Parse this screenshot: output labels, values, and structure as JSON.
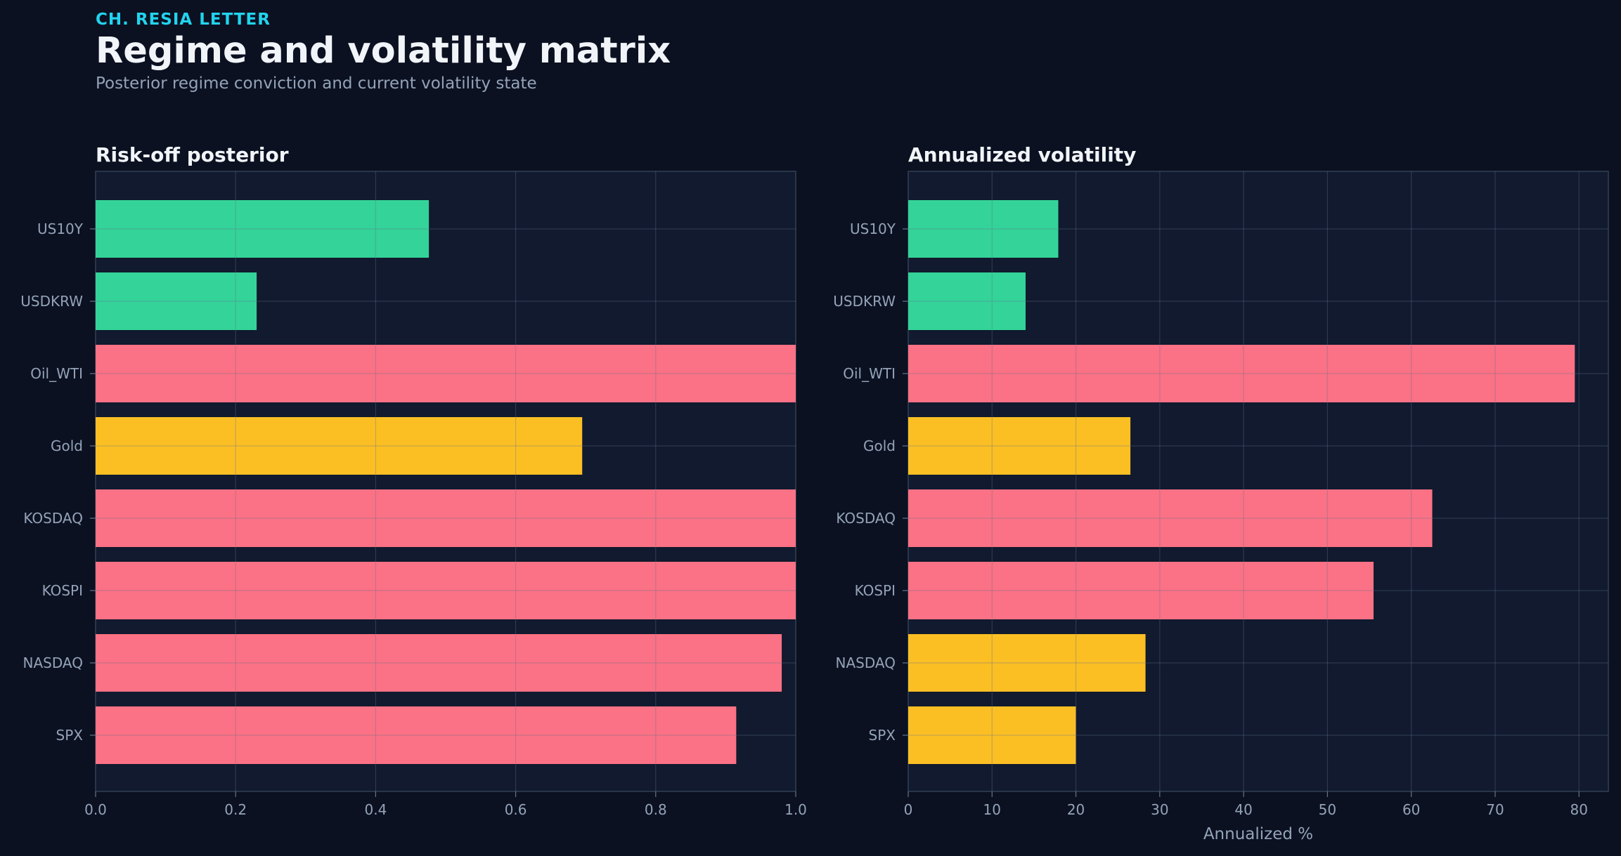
{
  "header": {
    "kicker": "CH. RESIA LETTER",
    "title": "Regime and volatility matrix",
    "subtitle": "Posterior regime conviction and current volatility state"
  },
  "colors": {
    "background": "#0b1121",
    "panel": "#111a2e",
    "risk_off": "#fb7185",
    "neutral": "#fbbf24",
    "risk_on": "#34d399",
    "text_muted": "#94a3b8",
    "text_title": "#f1f5f9"
  },
  "chart_data": [
    {
      "type": "bar",
      "orientation": "horizontal",
      "title": "Risk-off posterior",
      "xlabel": "",
      "ylabel": "",
      "categories": [
        "US10Y",
        "USDKRW",
        "Oil_WTI",
        "Gold",
        "KOSDAQ",
        "KOSPI",
        "NASDAQ",
        "SPX"
      ],
      "values": [
        0.476,
        0.23,
        1.0,
        0.695,
        1.0,
        1.0,
        0.98,
        0.915
      ],
      "bar_colors": [
        "#34d399",
        "#34d399",
        "#fb7185",
        "#fbbf24",
        "#fb7185",
        "#fb7185",
        "#fb7185",
        "#fb7185"
      ],
      "xlim": [
        0,
        1.0
      ],
      "xticks": [
        "0.0",
        "0.2",
        "0.4",
        "0.6",
        "0.8",
        "1.0"
      ],
      "xtick_values": [
        0,
        0.2,
        0.4,
        0.6,
        0.8,
        1.0
      ],
      "grid": true
    },
    {
      "type": "bar",
      "orientation": "horizontal",
      "title": "Annualized volatility",
      "xlabel": "Annualized %",
      "ylabel": "",
      "categories": [
        "US10Y",
        "USDKRW",
        "Oil_WTI",
        "Gold",
        "KOSDAQ",
        "KOSPI",
        "NASDAQ",
        "SPX"
      ],
      "values": [
        17.9,
        14.0,
        79.5,
        26.5,
        62.5,
        55.5,
        28.3,
        20.0
      ],
      "bar_colors": [
        "#34d399",
        "#34d399",
        "#fb7185",
        "#fbbf24",
        "#fb7185",
        "#fb7185",
        "#fbbf24",
        "#fbbf24"
      ],
      "xlim": [
        0,
        83.5
      ],
      "xticks": [
        "0",
        "10",
        "20",
        "30",
        "40",
        "50",
        "60",
        "70",
        "80"
      ],
      "xtick_values": [
        0,
        10,
        20,
        30,
        40,
        50,
        60,
        70,
        80
      ],
      "grid": true
    }
  ]
}
